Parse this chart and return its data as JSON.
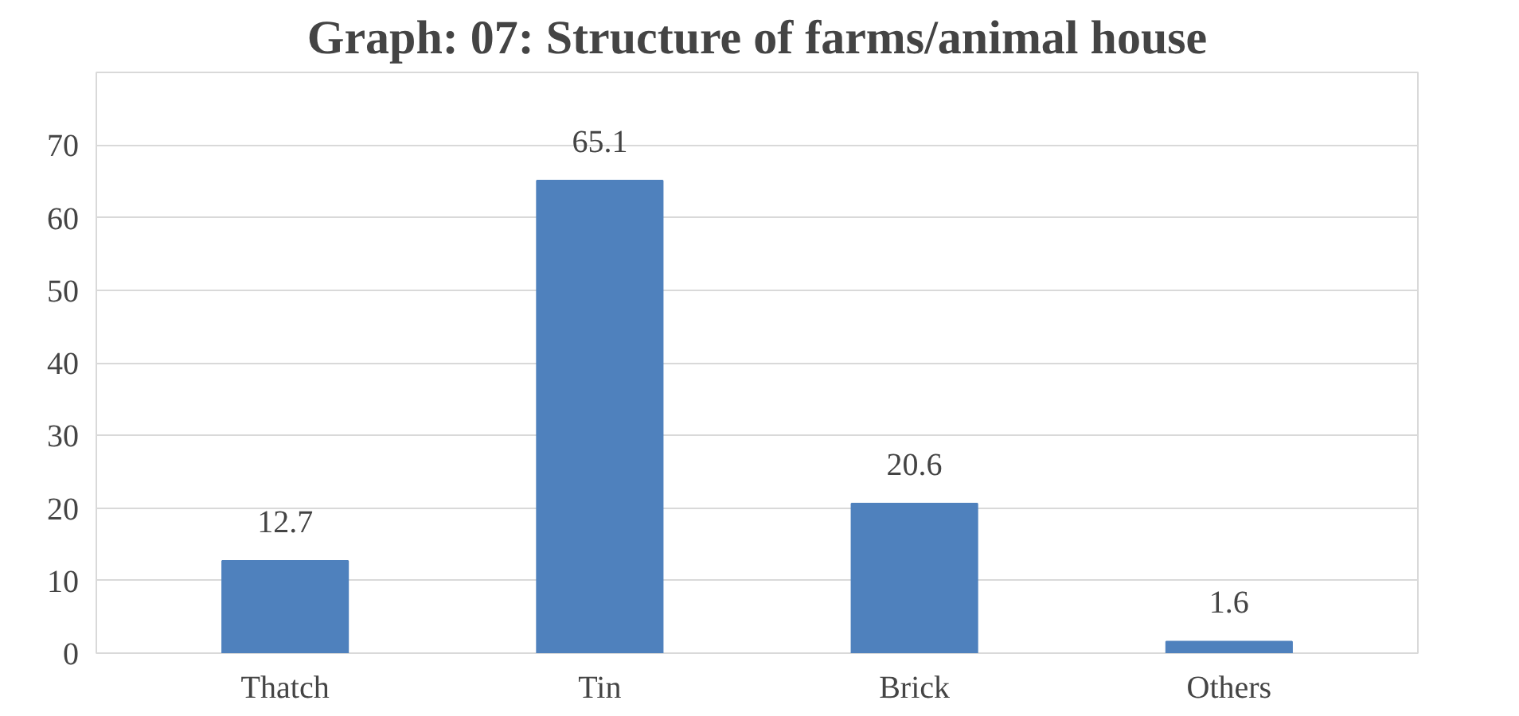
{
  "chart_data": {
    "type": "bar",
    "title": "Graph: 07: Structure of farms/animal house",
    "categories": [
      "Thatch",
      "Tin",
      "Brick",
      "Others"
    ],
    "values": [
      12.7,
      65.1,
      20.6,
      1.6
    ],
    "color": "#4f81bd",
    "ylim": [
      0,
      80
    ],
    "yticks": [
      0,
      10,
      20,
      30,
      40,
      50,
      60,
      70,
      {
        "value": 80,
        "label": null
      }
    ],
    "grid": "y",
    "data_labels": true
  }
}
